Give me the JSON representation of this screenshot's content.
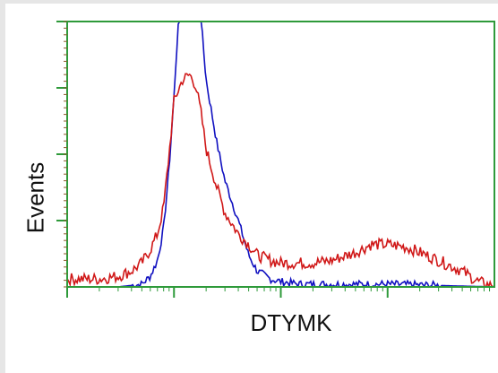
{
  "chart_data": {
    "type": "line",
    "xlabel": "DTYMK",
    "ylabel": "Events",
    "xscale": "log",
    "grid": false,
    "xlim": [
      1,
      10000
    ],
    "ylim": [
      0,
      100
    ],
    "series": [
      {
        "color": "#1010c0",
        "x": [
          1,
          3,
          5,
          6,
          7,
          8,
          9,
          10,
          11,
          12,
          14,
          16,
          18,
          20,
          25,
          30,
          40,
          50,
          60,
          80,
          100,
          150,
          300,
          1000,
          10000
        ],
        "y": [
          0,
          0,
          1,
          4,
          10,
          22,
          45,
          72,
          100,
          100,
          100,
          100,
          100,
          78,
          55,
          40,
          25,
          12,
          6,
          3,
          2,
          1,
          1,
          1,
          0
        ]
      },
      {
        "color": "#d01818",
        "x": [
          1,
          2,
          3,
          4,
          5,
          6,
          7,
          8,
          9,
          10,
          12,
          14,
          16,
          18,
          20,
          25,
          30,
          40,
          50,
          60,
          80,
          100,
          150,
          200,
          300,
          500,
          700,
          1000,
          1500,
          2000,
          3000,
          5000,
          7000,
          10000
        ],
        "y": [
          3,
          3,
          4,
          6,
          9,
          14,
          20,
          30,
          50,
          70,
          78,
          80,
          76,
          65,
          52,
          38,
          28,
          20,
          16,
          12,
          10,
          9,
          9,
          9,
          10,
          13,
          16,
          16,
          15,
          13,
          10,
          6,
          2,
          0
        ]
      }
    ]
  }
}
